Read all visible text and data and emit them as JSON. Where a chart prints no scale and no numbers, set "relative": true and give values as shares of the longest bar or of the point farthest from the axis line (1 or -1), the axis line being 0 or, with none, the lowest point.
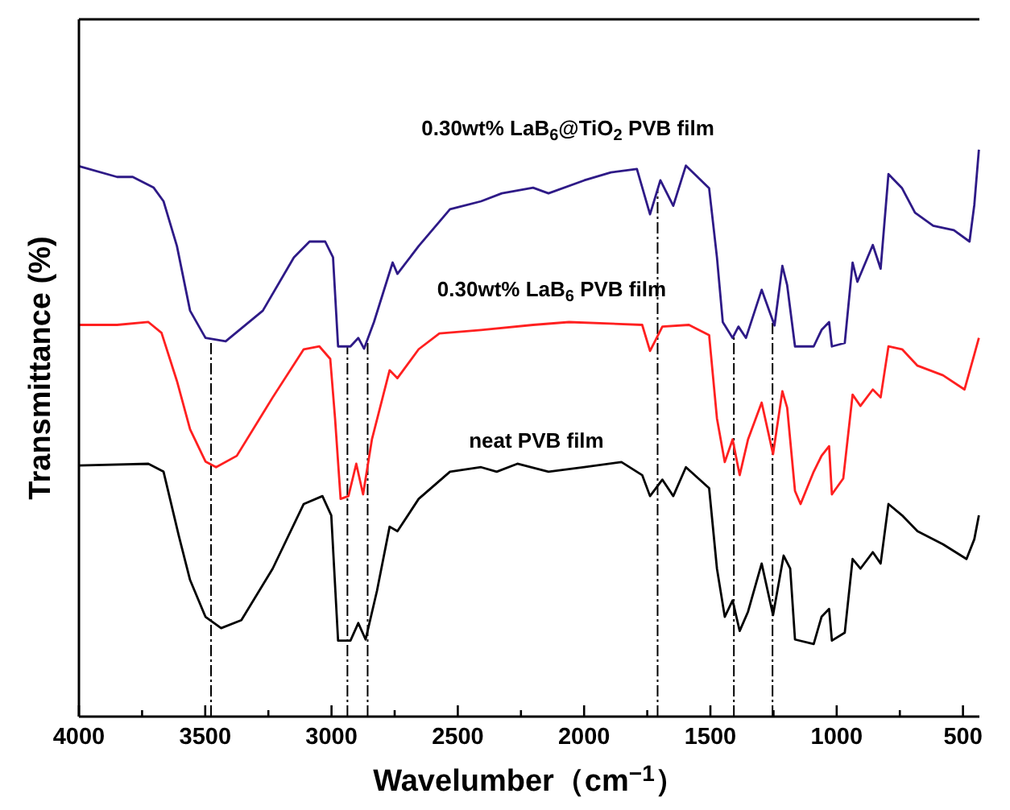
{
  "chart_data": {
    "type": "line",
    "relative": true,
    "xlabel": "Wavelumber（cm$^{−1}$）",
    "ylabel": "Transmittance (%)",
    "xlim": [
      4000,
      435
    ],
    "xticks": [
      4000,
      {
        "value": 3750,
        "label": null
      },
      3500,
      {
        "value": 3250,
        "label": null
      },
      3000,
      {
        "value": 2750,
        "label": null
      },
      2500,
      {
        "value": 2250,
        "label": null
      },
      2000,
      {
        "value": 1750,
        "label": null
      },
      1500,
      {
        "value": 1250,
        "label": null
      },
      1000,
      {
        "value": 750,
        "label": null
      },
      500
    ],
    "tick_labels": "x",
    "grid": false,
    "legend": false,
    "marker": "none",
    "line_style": "solid",
    "series": [
      {
        "name": "0.30wt% LaB$_{6}$@TiO$_{2}$ PVB film",
        "color": "#2e1a87",
        "x": [
          4000,
          3849,
          3787,
          3704,
          3665,
          3612,
          3560,
          3499,
          3419,
          3272,
          3149,
          3087,
          3025,
          2994,
          2974,
          2925,
          2894,
          2871,
          2832,
          2758,
          2739,
          2655,
          2531,
          2408,
          2326,
          2202,
          2141,
          1999,
          1894,
          1791,
          1739,
          1698,
          1647,
          1597,
          1505,
          1474,
          1451,
          1412,
          1389,
          1359,
          1297,
          1246,
          1215,
          1196,
          1165,
          1091,
          1060,
          1030,
          1019,
          968,
          937,
          918,
          857,
          826,
          795,
          741,
          690,
          618,
          536,
          474,
          455,
          437
        ],
        "values": [
          0.971,
          0.952,
          0.952,
          0.933,
          0.909,
          0.83,
          0.716,
          0.668,
          0.662,
          0.716,
          0.81,
          0.838,
          0.838,
          0.81,
          0.653,
          0.653,
          0.668,
          0.649,
          0.696,
          0.801,
          0.781,
          0.83,
          0.895,
          0.909,
          0.923,
          0.933,
          0.923,
          0.946,
          0.96,
          0.966,
          0.886,
          0.946,
          0.901,
          0.972,
          0.932,
          0.81,
          0.696,
          0.668,
          0.688,
          0.668,
          0.753,
          0.69,
          0.795,
          0.761,
          0.653,
          0.653,
          0.682,
          0.696,
          0.653,
          0.659,
          0.801,
          0.767,
          0.832,
          0.79,
          0.957,
          0.932,
          0.889,
          0.866,
          0.858,
          0.838,
          0.903,
          1.0
        ]
      },
      {
        "name": "0.30wt% LaB$_{6}$ PVB film",
        "color": "#ff2020",
        "x": [
          4000,
          3849,
          3725,
          3673,
          3612,
          3560,
          3499,
          3457,
          3375,
          3233,
          3110,
          3048,
          3005,
          2986,
          2964,
          2933,
          2902,
          2875,
          2840,
          2770,
          2739,
          2655,
          2573,
          2408,
          2202,
          2060,
          1770,
          1739,
          1690,
          1585,
          1505,
          1474,
          1443,
          1412,
          1384,
          1351,
          1297,
          1252,
          1215,
          1196,
          1165,
          1143,
          1091,
          1060,
          1030,
          1019,
          974,
          937,
          906,
          857,
          826,
          795,
          741,
          680,
          579,
          494,
          455,
          437
        ],
        "values": [
          0.691,
          0.691,
          0.696,
          0.677,
          0.592,
          0.507,
          0.45,
          0.44,
          0.46,
          0.563,
          0.648,
          0.653,
          0.631,
          0.526,
          0.384,
          0.389,
          0.446,
          0.392,
          0.489,
          0.611,
          0.597,
          0.648,
          0.676,
          0.682,
          0.691,
          0.696,
          0.691,
          0.645,
          0.688,
          0.691,
          0.673,
          0.526,
          0.449,
          0.489,
          0.426,
          0.489,
          0.554,
          0.463,
          0.574,
          0.545,
          0.398,
          0.375,
          0.432,
          0.46,
          0.477,
          0.392,
          0.42,
          0.568,
          0.548,
          0.577,
          0.563,
          0.653,
          0.648,
          0.619,
          0.602,
          0.577,
          0.639,
          0.668
        ]
      },
      {
        "name": "neat PVB film",
        "color": "#000000",
        "x": [
          4000,
          3725,
          3665,
          3604,
          3560,
          3499,
          3437,
          3357,
          3233,
          3110,
          3036,
          3001,
          2974,
          2925,
          2894,
          2865,
          2820,
          2770,
          2739,
          2655,
          2531,
          2408,
          2346,
          2264,
          2141,
          1999,
          1852,
          1770,
          1739,
          1690,
          1647,
          1597,
          1505,
          1474,
          1443,
          1412,
          1384,
          1351,
          1297,
          1252,
          1210,
          1184,
          1165,
          1091,
          1060,
          1030,
          1019,
          968,
          937,
          906,
          857,
          826,
          795,
          741,
          680,
          579,
          486,
          455,
          437
        ],
        "values": [
          0.443,
          0.446,
          0.432,
          0.318,
          0.241,
          0.176,
          0.156,
          0.17,
          0.261,
          0.375,
          0.389,
          0.355,
          0.134,
          0.134,
          0.165,
          0.136,
          0.222,
          0.335,
          0.327,
          0.384,
          0.432,
          0.44,
          0.432,
          0.446,
          0.432,
          0.44,
          0.449,
          0.426,
          0.389,
          0.418,
          0.389,
          0.44,
          0.403,
          0.261,
          0.176,
          0.205,
          0.151,
          0.185,
          0.27,
          0.179,
          0.284,
          0.261,
          0.136,
          0.128,
          0.176,
          0.19,
          0.134,
          0.148,
          0.278,
          0.261,
          0.29,
          0.27,
          0.375,
          0.355,
          0.327,
          0.304,
          0.278,
          0.313,
          0.355
        ]
      }
    ],
    "ref_lines": [
      {
        "axis": "x",
        "value": 3477,
        "color": "#000000",
        "line_style": "dashed"
      },
      {
        "axis": "x",
        "value": 2937,
        "color": "#000000",
        "line_style": "dashed"
      },
      {
        "axis": "x",
        "value": 2857,
        "color": "#000000",
        "line_style": "dashed"
      },
      {
        "axis": "x",
        "value": 1709,
        "color": "#000000",
        "line_style": "dashed"
      },
      {
        "axis": "x",
        "value": 1407,
        "color": "#000000",
        "line_style": "dashed"
      },
      {
        "axis": "x",
        "value": 1254,
        "color": "#000000",
        "line_style": "dashed"
      }
    ]
  }
}
